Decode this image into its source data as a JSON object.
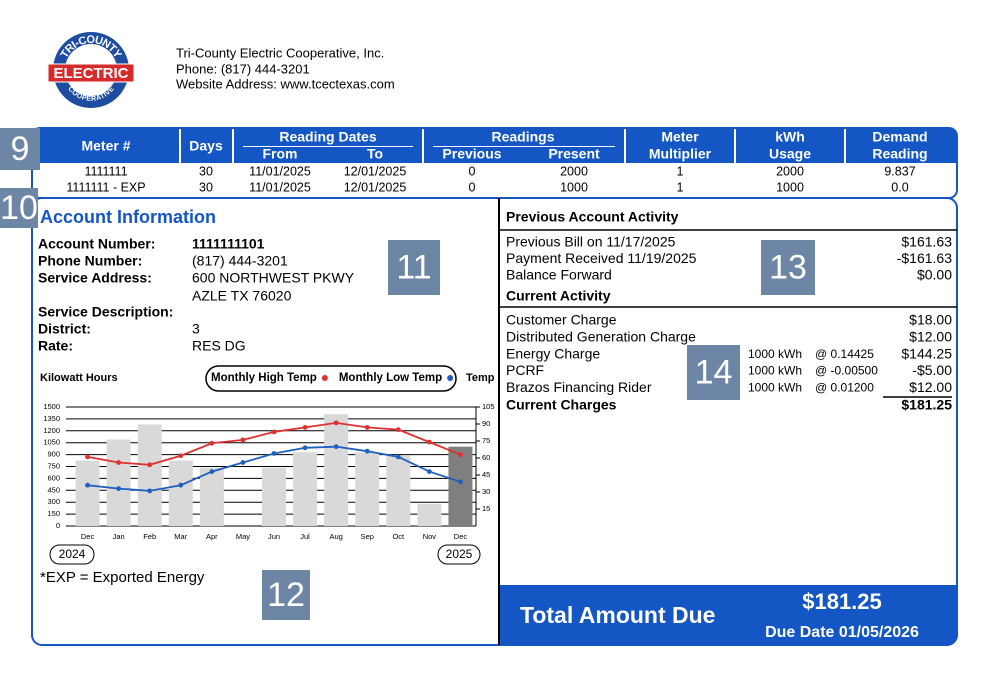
{
  "logo": {
    "top": "TRI-COUNTY",
    "middle": "ELECTRIC",
    "bottom": "COOPERATIVE"
  },
  "header": {
    "company": "Tri-County Electric Cooperative, Inc.",
    "phone": "Phone: (817) 444-3201",
    "website": "Website Address: www.tcectexas.com"
  },
  "markers": [
    "9",
    "10",
    "11",
    "12",
    "13",
    "14"
  ],
  "meter_table": {
    "headers": {
      "meter": "Meter #",
      "days": "Days",
      "reading_dates": "Reading Dates",
      "from": "From",
      "to": "To",
      "readings": "Readings",
      "previous": "Previous",
      "present": "Present",
      "multiplier": [
        "Meter",
        "Multiplier"
      ],
      "usage": [
        "kWh",
        "Usage"
      ],
      "demand": [
        "Demand",
        "Reading"
      ]
    },
    "rows": [
      [
        "1111111",
        "30",
        "11/01/2025",
        "12/01/2025",
        "0",
        "2000",
        "1",
        "2000",
        "9.837"
      ],
      [
        "1111111 - EXP",
        "30",
        "11/01/2025",
        "12/01/2025",
        "0",
        "1000",
        "1",
        "1000",
        "0.0"
      ]
    ]
  },
  "account": {
    "title": "Account Information",
    "fields": [
      {
        "label": "Account Number:",
        "value": [
          "1111111101"
        ]
      },
      {
        "label": "Phone Number:",
        "value": [
          "(817) 444-3201"
        ]
      },
      {
        "label": "Service Address:",
        "value": [
          "600 NORTHWEST PKWY",
          "AZLE TX 76020"
        ]
      },
      {
        "label": "Service Description:"
      },
      {
        "label": "District:",
        "value": [
          "3"
        ]
      },
      {
        "label": "Rate:",
        "value": [
          "RES DG"
        ]
      }
    ]
  },
  "note": "*EXP = Exported Energy",
  "previous_activity": {
    "title": "Previous Account Activity",
    "rows": [
      {
        "label": "Previous Bill on 11/17/2025",
        "amount": "$161.63"
      },
      {
        "label": "Payment Received 11/19/2025",
        "amount": "-$161.63"
      },
      {
        "label": "Balance Forward",
        "amount": "$0.00"
      }
    ]
  },
  "current_activity": {
    "title": "Current Activity",
    "rows": [
      {
        "label": "Customer Charge",
        "amount": "$18.00"
      },
      {
        "label": "Distributed Generation Charge",
        "amount": "$12.00"
      },
      {
        "label": "Energy Charge",
        "kwh": "1000 kWh",
        "rate": "@ 0.14425",
        "amount": "$144.25"
      },
      {
        "label": "PCRF",
        "kwh": "1000 kWh",
        "rate": "@ -0.00500",
        "amount": "-$5.00"
      },
      {
        "label": "Brazos Financing Rider",
        "kwh": "1000 kWh",
        "rate": "@ 0.01200",
        "amount": "$12.00"
      }
    ],
    "total_label": "Current Charges",
    "total": "$181.25"
  },
  "total_due": {
    "label": "Total Amount Due",
    "amount": "$181.25",
    "due_date": "Due Date 01/05/2026"
  },
  "chart_data": {
    "type": "bar",
    "y_label": "Kilowatt Hours",
    "y2_label": "Temp",
    "years": [
      "2024",
      "2025"
    ],
    "categories": [
      "Dec",
      "Jan",
      "Feb",
      "Mar",
      "Apr",
      "May",
      "Jun",
      "Jul",
      "Aug",
      "Sep",
      "Oct",
      "Nov",
      "Dec"
    ],
    "series": [
      {
        "type": "bar",
        "colors": [
          "#d9d9d9",
          "#d9d9d9",
          "#d9d9d9",
          "#d9d9d9",
          "#d9d9d9",
          "#d9d9d9",
          "#d9d9d9",
          "#d9d9d9",
          "#d9d9d9",
          "#d9d9d9",
          "#d9d9d9",
          "#d9d9d9",
          "#7f7f7f"
        ],
        "values": [
          825,
          1090,
          1280,
          825,
          735,
          0,
          735,
          930,
          1410,
          930,
          890,
          280,
          1000
        ]
      },
      {
        "type": "line",
        "name": "Monthly High Temp",
        "color": "#e03131",
        "axis": "y2",
        "values": [
          61,
          56,
          54,
          62,
          73,
          76,
          83,
          87,
          91,
          87,
          85,
          74,
          63
        ]
      },
      {
        "type": "line",
        "name": "Monthly Low Temp",
        "color": "#1f5fbf",
        "axis": "y2",
        "values": [
          36,
          33,
          31,
          36,
          48,
          56,
          64,
          69,
          70,
          66,
          61,
          48,
          39
        ]
      }
    ],
    "ylim": [
      0,
      1500
    ],
    "yticks": [
      0,
      150,
      300,
      450,
      600,
      750,
      900,
      1050,
      1200,
      1350,
      1500
    ],
    "y2lim": [
      0,
      105
    ],
    "y2ticks": [
      15,
      30,
      45,
      60,
      75,
      90,
      105
    ],
    "grid": true
  }
}
